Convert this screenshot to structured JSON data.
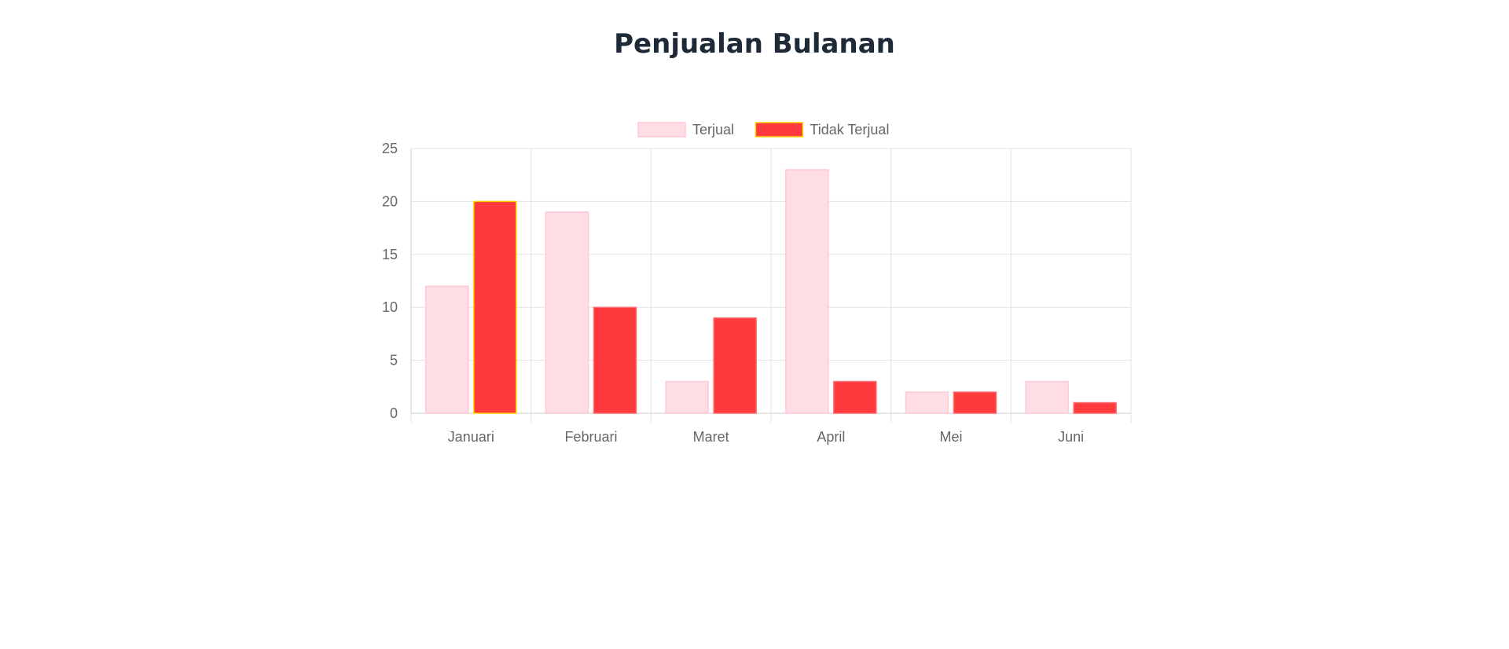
{
  "page": {
    "title": "Penjualan Bulanan"
  },
  "chart_data": {
    "type": "bar",
    "categories": [
      "Januari",
      "Februari",
      "Maret",
      "April",
      "Mei",
      "Juni"
    ],
    "series": [
      {
        "name": "Terjual",
        "values": [
          12,
          19,
          3,
          23,
          2,
          3
        ],
        "fill": "#ffdde4",
        "stroke": "#ffc9d4"
      },
      {
        "name": "Tidak Terjual",
        "values": [
          20,
          10,
          9,
          3,
          2,
          1
        ],
        "fill": "#ff3a3d",
        "stroke": "#ff6b6e",
        "highlight_stroke": "#ffd400"
      }
    ],
    "yticks": [
      0,
      5,
      10,
      15,
      20,
      25
    ],
    "ylim": [
      0,
      25
    ],
    "grid": true,
    "legend_position": "top"
  }
}
